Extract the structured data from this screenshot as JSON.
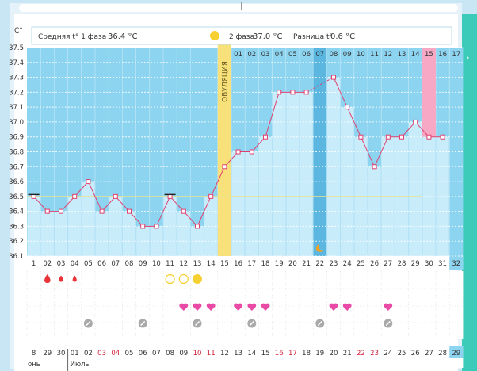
{
  "chart_data": {
    "type": "line",
    "title": "",
    "unit_label": "C°",
    "y_ticks": [
      "37.5",
      "37.4",
      "37.3",
      "37.2",
      "37.1",
      "37.0",
      "36.9",
      "36.8",
      "36.7",
      "36.6",
      "36.5",
      "36.4",
      "36.3",
      "36.2",
      "36.1"
    ],
    "ylim": [
      36.1,
      37.5
    ],
    "phase1_label": "Средняя t° 1 фаза",
    "phase1_avg": "36.4 °C",
    "phase2_label": "2 фаза",
    "phase2_avg": "37.0 °C",
    "diff_label": "Разница t°",
    "diff_value": "0.6 °C",
    "ovulation_label": "ОВУЛЯЦИЯ",
    "ovulation_day_index": 14,
    "coverline": 36.5,
    "highlight_day_index": 29,
    "cycle_days": [
      "1",
      "02",
      "03",
      "04",
      "05",
      "06",
      "07",
      "08",
      "09",
      "10",
      "11",
      "12",
      "13",
      "14",
      "15",
      "16",
      "17",
      "18",
      "19",
      "20",
      "21",
      "22",
      "23",
      "24",
      "25",
      "26",
      "27",
      "28",
      "29",
      "30",
      "31",
      "32"
    ],
    "phase2_days": [
      "01",
      "02",
      "03",
      "04",
      "05",
      "06",
      "07",
      "08",
      "09",
      "10",
      "11",
      "12",
      "13",
      "14",
      "15",
      "16",
      "17"
    ],
    "dates": [
      "8",
      "29",
      "30",
      "01",
      "02",
      "03",
      "04",
      "05",
      "06",
      "07",
      "08",
      "09",
      "10",
      "11",
      "12",
      "13",
      "14",
      "15",
      "16",
      "17",
      "18",
      "19",
      "20",
      "21",
      "22",
      "23",
      "24",
      "25",
      "26",
      "27",
      "28",
      "29"
    ],
    "date_colors": [
      "n",
      "n",
      "n",
      "n",
      "n",
      "r",
      "r",
      "n",
      "n",
      "n",
      "n",
      "n",
      "r",
      "r",
      "n",
      "n",
      "n",
      "n",
      "r",
      "r",
      "n",
      "n",
      "n",
      "n",
      "r",
      "r",
      "n",
      "n",
      "n",
      "n",
      "n",
      "n"
    ],
    "month_labels": [
      "онь",
      "Июль"
    ],
    "temperatures": [
      36.5,
      36.4,
      36.4,
      36.5,
      36.6,
      36.4,
      36.5,
      36.4,
      36.3,
      36.3,
      36.5,
      36.4,
      36.3,
      36.5,
      36.7,
      36.8,
      36.8,
      36.9,
      37.2,
      37.2,
      37.2,
      null,
      37.3,
      37.1,
      36.9,
      36.7,
      36.9,
      36.9,
      37.0,
      36.9,
      36.9
    ],
    "dashed_segment": [
      20,
      22
    ],
    "black_marker_days": [
      0,
      10
    ],
    "moon_day_index": 21,
    "icons": {
      "drops": [
        1,
        2,
        3
      ],
      "open_circles": [
        10,
        11
      ],
      "filled_circle": [
        12
      ],
      "hearts": [
        11,
        12,
        13,
        15,
        16,
        17,
        22,
        23,
        26
      ],
      "pill_marks": [
        4,
        8,
        12,
        16,
        21,
        26
      ]
    },
    "colors": {
      "sky": "#8dd4f0",
      "bar": "#c9ecfb",
      "dark_bar": "#5bb6e0",
      "line": "#e0406e",
      "ovulation": "#f8e17a",
      "highlight": "#f7a8c4",
      "heart": "#e84aa6",
      "drop": "#e8353a",
      "pill": "#a9a9a9",
      "moon": "#f0a020",
      "coverline": "#e8e28a",
      "accent": "#3ccbb8"
    }
  }
}
